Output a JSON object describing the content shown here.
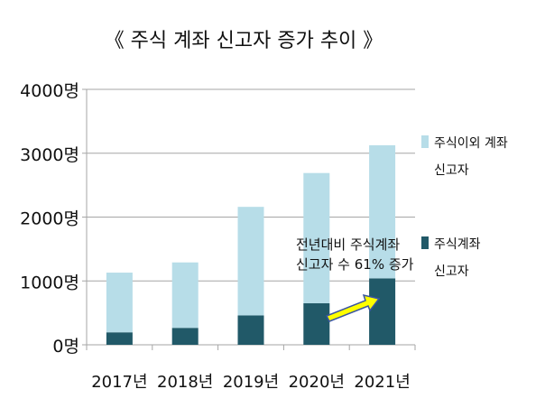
{
  "chart_data": {
    "type": "bar",
    "stacked": true,
    "title": "《 주식 계좌 신고자 증가 추이 》",
    "categories": [
      "2017년",
      "2018년",
      "2019년",
      "2020년",
      "2021년"
    ],
    "series": [
      {
        "name": "주식계좌 신고자",
        "legend_lines": [
          "주식계좌",
          "신고자"
        ],
        "color": "#215968",
        "values": [
          195,
          265,
          460,
          650,
          1040
        ]
      },
      {
        "name": "주식이외 계좌 신고자",
        "legend_lines": [
          "주식이외 계좌",
          "신고자"
        ],
        "color": "#b7dde8",
        "values": [
          935,
          1025,
          1700,
          2040,
          2085
        ]
      }
    ],
    "yticks": [
      "0명",
      "1000명",
      "2000명",
      "3000명",
      "4000명"
    ],
    "ylim": [
      0,
      4000
    ],
    "grid": true,
    "legend_position": "right",
    "annotation": {
      "lines": [
        "전년대비 주식계좌",
        "신고자 수 61% 증가"
      ],
      "arrow_color": "#ffff00"
    }
  }
}
